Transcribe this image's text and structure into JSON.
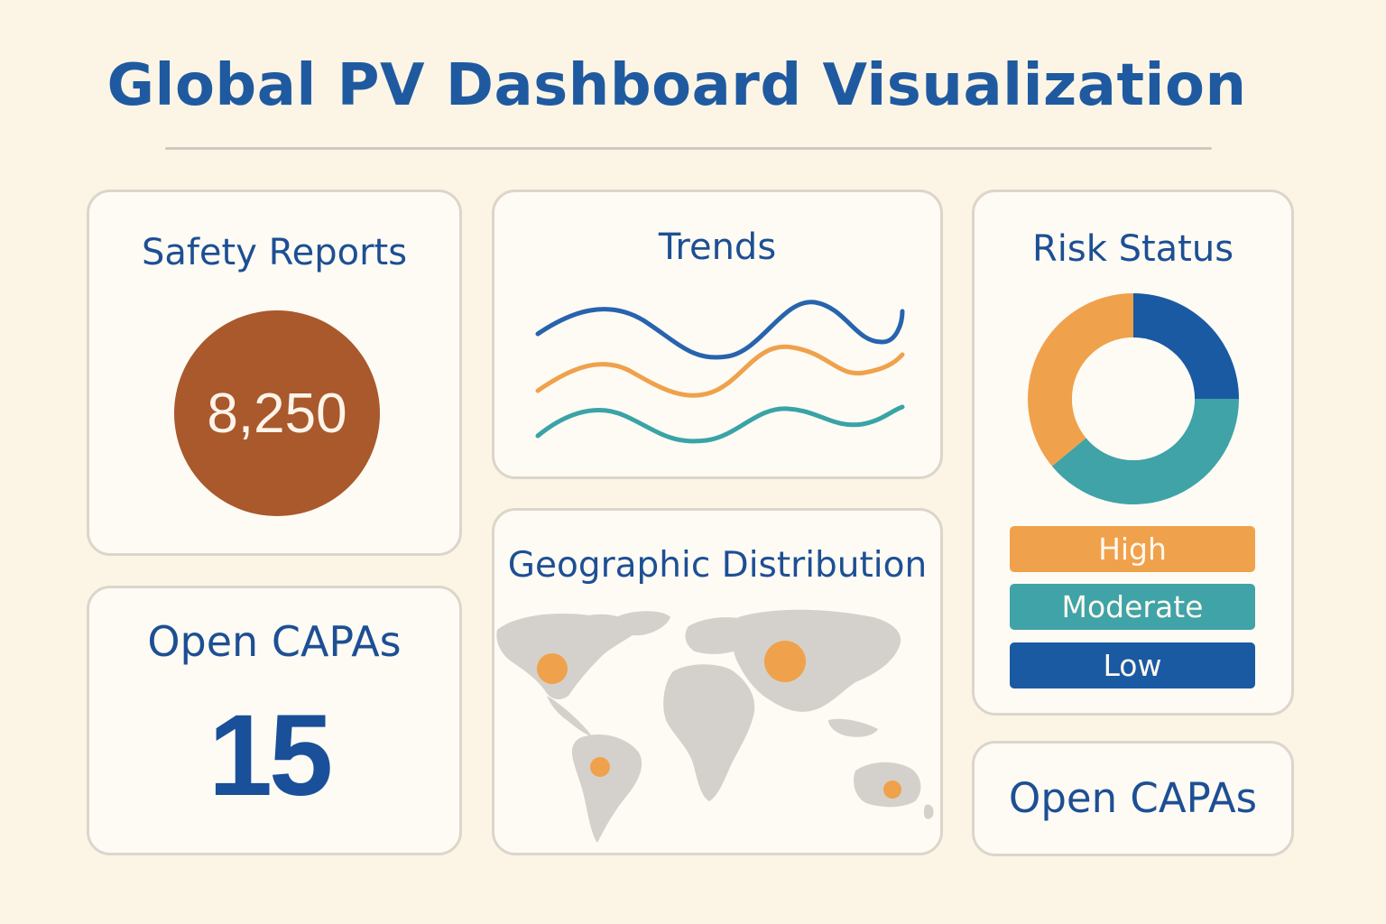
{
  "header": {
    "title": "Global PV Dashboard Visualization"
  },
  "safety_reports": {
    "title": "Safety Reports",
    "value": "8,250"
  },
  "open_capas": {
    "title": "Open CAPAs",
    "value": "15"
  },
  "trends": {
    "title": "Trends",
    "line_colors": [
      "#2763ae",
      "#f0a14c",
      "#3aa3a6"
    ]
  },
  "geographic": {
    "title": "Geographic Distribution",
    "map_color": "#d4d1cc",
    "marker_color": "#f0a14c"
  },
  "risk_status": {
    "title": "Risk Status",
    "segments": [
      {
        "label": "High",
        "fraction": 0.36,
        "color": "#f0a14c"
      },
      {
        "label": "Moderate",
        "fraction": 0.39,
        "color": "#3fa3a8"
      },
      {
        "label": "Low",
        "fraction": 0.25,
        "color": "#1a5aa3"
      }
    ]
  },
  "open_capas_secondary": {
    "title": "Open CAPAs"
  }
}
